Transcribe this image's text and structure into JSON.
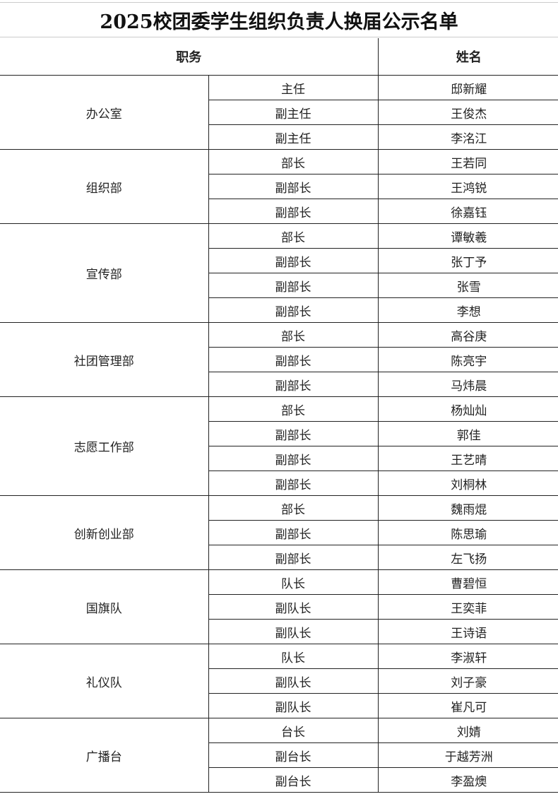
{
  "title": "2025校团委学生组织负责人换届公示名单",
  "headers": {
    "position": "职务",
    "name": "姓名"
  },
  "departments": [
    {
      "name": "办公室",
      "members": [
        [
          "主任",
          "邸新耀"
        ],
        [
          "副主任",
          "王俊杰"
        ],
        [
          "副主任",
          "李洺江"
        ]
      ]
    },
    {
      "name": "组织部",
      "members": [
        [
          "部长",
          "王若同"
        ],
        [
          "副部长",
          "王鸿锐"
        ],
        [
          "副部长",
          "徐嘉钰"
        ]
      ]
    },
    {
      "name": "宣传部",
      "members": [
        [
          "部长",
          "谭敏羲"
        ],
        [
          "副部长",
          "张丁予"
        ],
        [
          "副部长",
          "张雪"
        ],
        [
          "副部长",
          "李想"
        ]
      ]
    },
    {
      "name": "社团管理部",
      "members": [
        [
          "部长",
          "高谷庚"
        ],
        [
          "副部长",
          "陈亮宇"
        ],
        [
          "副部长",
          "马炜晨"
        ]
      ]
    },
    {
      "name": "志愿工作部",
      "members": [
        [
          "部长",
          "杨灿灿"
        ],
        [
          "副部长",
          "郭佳"
        ],
        [
          "副部长",
          "王艺晴"
        ],
        [
          "副部长",
          "刘桐林"
        ]
      ]
    },
    {
      "name": "创新创业部",
      "members": [
        [
          "部长",
          "魏雨焜"
        ],
        [
          "副部长",
          "陈思瑜"
        ],
        [
          "副部长",
          "左飞扬"
        ]
      ]
    },
    {
      "name": "国旗队",
      "members": [
        [
          "队长",
          "曹碧恒"
        ],
        [
          "副队长",
          "王奕菲"
        ],
        [
          "副队长",
          "王诗语"
        ]
      ]
    },
    {
      "name": "礼仪队",
      "members": [
        [
          "队长",
          "李淑轩"
        ],
        [
          "副队长",
          "刘子豪"
        ],
        [
          "副队长",
          "崔凡可"
        ]
      ]
    },
    {
      "name": "广播台",
      "members": [
        [
          "台长",
          "刘婧"
        ],
        [
          "副台长",
          "于越芳洲"
        ],
        [
          "副台长",
          "李盈燠"
        ]
      ]
    }
  ]
}
